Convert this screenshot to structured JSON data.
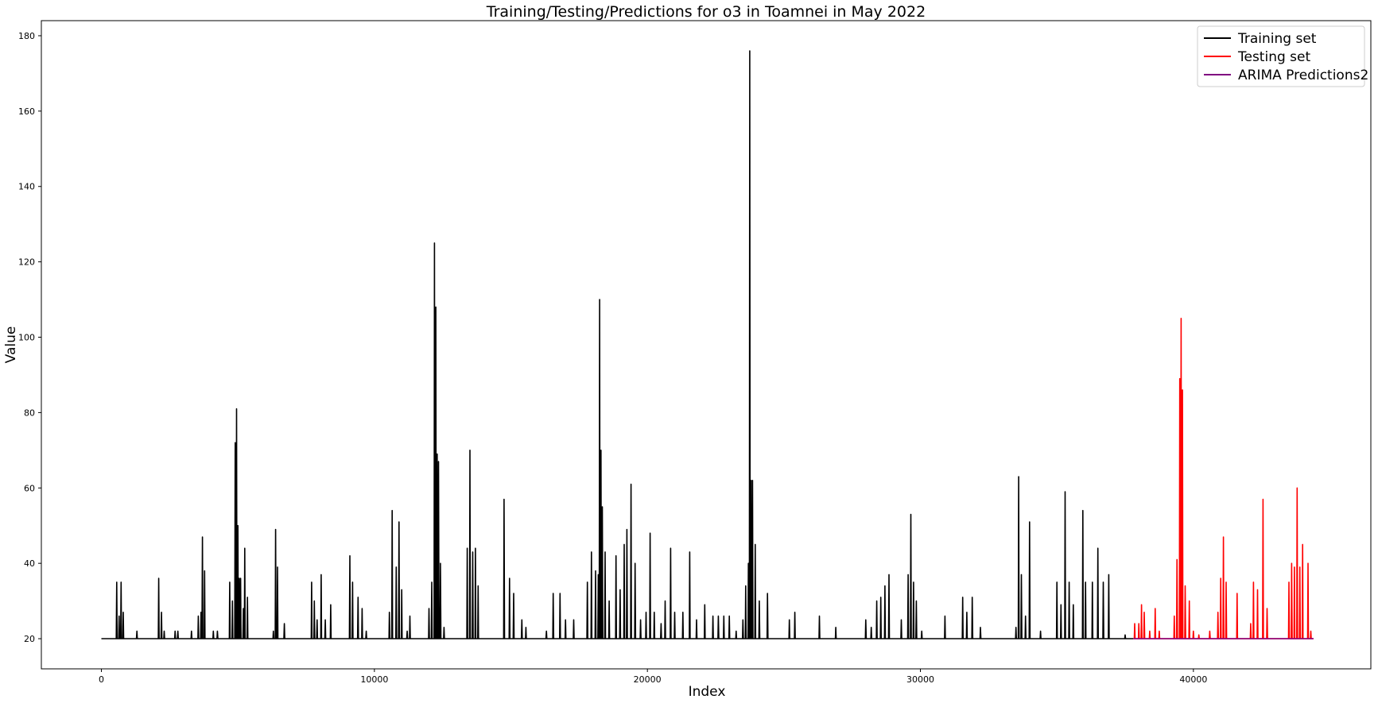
{
  "chart_data": {
    "type": "line",
    "title": "Training/Testing/Predictions for o3 in Toamnei in May 2022",
    "xlabel": "Index",
    "ylabel": "Value",
    "xlim": [
      -2200,
      46500
    ],
    "ylim": [
      12,
      184
    ],
    "xticks": [
      0,
      10000,
      20000,
      30000,
      40000
    ],
    "yticks": [
      20,
      40,
      60,
      80,
      100,
      120,
      140,
      160,
      180
    ],
    "legend_position": "top-right",
    "baseline": 20,
    "series": [
      {
        "name": "Training set",
        "color": "#000000",
        "range": [
          0,
          37800
        ],
        "spikes": [
          [
            560,
            35
          ],
          [
            650,
            26
          ],
          [
            720,
            35
          ],
          [
            800,
            27
          ],
          [
            1300,
            22
          ],
          [
            2100,
            36
          ],
          [
            2200,
            27
          ],
          [
            2300,
            22
          ],
          [
            2700,
            22
          ],
          [
            2800,
            22
          ],
          [
            3300,
            22
          ],
          [
            3550,
            26
          ],
          [
            3650,
            27
          ],
          [
            3700,
            47
          ],
          [
            3780,
            38
          ],
          [
            4100,
            22
          ],
          [
            4250,
            22
          ],
          [
            4700,
            35
          ],
          [
            4800,
            30
          ],
          [
            4900,
            72
          ],
          [
            4950,
            81
          ],
          [
            5000,
            50
          ],
          [
            5050,
            36
          ],
          [
            5100,
            36
          ],
          [
            5200,
            28
          ],
          [
            5250,
            44
          ],
          [
            5350,
            31
          ],
          [
            6300,
            22
          ],
          [
            6380,
            49
          ],
          [
            6450,
            39
          ],
          [
            6700,
            24
          ],
          [
            7700,
            35
          ],
          [
            7800,
            30
          ],
          [
            7900,
            25
          ],
          [
            8050,
            37
          ],
          [
            8200,
            25
          ],
          [
            8400,
            29
          ],
          [
            9100,
            42
          ],
          [
            9200,
            35
          ],
          [
            9400,
            31
          ],
          [
            9550,
            28
          ],
          [
            9700,
            22
          ],
          [
            10550,
            27
          ],
          [
            10650,
            54
          ],
          [
            10800,
            39
          ],
          [
            10900,
            51
          ],
          [
            11000,
            33
          ],
          [
            11200,
            22
          ],
          [
            11300,
            26
          ],
          [
            12000,
            28
          ],
          [
            12100,
            35
          ],
          [
            12200,
            125
          ],
          [
            12250,
            108
          ],
          [
            12300,
            69
          ],
          [
            12350,
            67
          ],
          [
            12420,
            40
          ],
          [
            12550,
            23
          ],
          [
            13400,
            44
          ],
          [
            13500,
            70
          ],
          [
            13600,
            43
          ],
          [
            13700,
            44
          ],
          [
            13800,
            34
          ],
          [
            14750,
            57
          ],
          [
            14950,
            36
          ],
          [
            15100,
            32
          ],
          [
            15400,
            25
          ],
          [
            15550,
            23
          ],
          [
            16300,
            22
          ],
          [
            16550,
            32
          ],
          [
            16800,
            32
          ],
          [
            17000,
            25
          ],
          [
            17300,
            25
          ],
          [
            17800,
            35
          ],
          [
            17950,
            43
          ],
          [
            18100,
            38
          ],
          [
            18200,
            37
          ],
          [
            18250,
            110
          ],
          [
            18300,
            70
          ],
          [
            18350,
            55
          ],
          [
            18450,
            43
          ],
          [
            18600,
            30
          ],
          [
            18850,
            42
          ],
          [
            19000,
            33
          ],
          [
            19150,
            45
          ],
          [
            19250,
            49
          ],
          [
            19400,
            61
          ],
          [
            19550,
            40
          ],
          [
            19750,
            25
          ],
          [
            19950,
            27
          ],
          [
            20100,
            48
          ],
          [
            20250,
            27
          ],
          [
            20500,
            24
          ],
          [
            20650,
            30
          ],
          [
            20850,
            44
          ],
          [
            21000,
            27
          ],
          [
            21300,
            27
          ],
          [
            21550,
            43
          ],
          [
            21800,
            25
          ],
          [
            22100,
            29
          ],
          [
            22400,
            26
          ],
          [
            22600,
            26
          ],
          [
            22800,
            26
          ],
          [
            23000,
            26
          ],
          [
            23250,
            22
          ],
          [
            23500,
            25
          ],
          [
            23600,
            34
          ],
          [
            23700,
            40
          ],
          [
            23750,
            176
          ],
          [
            23800,
            62
          ],
          [
            23850,
            62
          ],
          [
            23950,
            45
          ],
          [
            24100,
            30
          ],
          [
            24400,
            32
          ],
          [
            25200,
            25
          ],
          [
            25400,
            27
          ],
          [
            26300,
            26
          ],
          [
            26900,
            23
          ],
          [
            28000,
            25
          ],
          [
            28200,
            23
          ],
          [
            28400,
            30
          ],
          [
            28550,
            31
          ],
          [
            28700,
            34
          ],
          [
            28850,
            37
          ],
          [
            29300,
            25
          ],
          [
            29550,
            37
          ],
          [
            29650,
            53
          ],
          [
            29750,
            35
          ],
          [
            29850,
            30
          ],
          [
            30050,
            22
          ],
          [
            30900,
            26
          ],
          [
            31550,
            31
          ],
          [
            31700,
            27
          ],
          [
            31900,
            31
          ],
          [
            32200,
            23
          ],
          [
            33500,
            23
          ],
          [
            33600,
            63
          ],
          [
            33700,
            37
          ],
          [
            33850,
            26
          ],
          [
            34000,
            51
          ],
          [
            34400,
            22
          ],
          [
            35000,
            35
          ],
          [
            35150,
            29
          ],
          [
            35300,
            59
          ],
          [
            35450,
            35
          ],
          [
            35600,
            29
          ],
          [
            35950,
            54
          ],
          [
            36050,
            35
          ],
          [
            36300,
            35
          ],
          [
            36500,
            44
          ],
          [
            36700,
            35
          ],
          [
            36900,
            37
          ],
          [
            37500,
            21
          ]
        ]
      },
      {
        "name": "Testing set",
        "color": "#ff0000",
        "range": [
          37800,
          44400
        ],
        "spikes": [
          [
            37850,
            24
          ],
          [
            38000,
            24
          ],
          [
            38100,
            29
          ],
          [
            38200,
            27
          ],
          [
            38400,
            22
          ],
          [
            38600,
            28
          ],
          [
            38750,
            22
          ],
          [
            39300,
            26
          ],
          [
            39400,
            41
          ],
          [
            39500,
            89
          ],
          [
            39550,
            105
          ],
          [
            39600,
            86
          ],
          [
            39700,
            34
          ],
          [
            39850,
            30
          ],
          [
            40000,
            22
          ],
          [
            40200,
            21
          ],
          [
            40600,
            22
          ],
          [
            40900,
            27
          ],
          [
            41000,
            36
          ],
          [
            41100,
            47
          ],
          [
            41200,
            35
          ],
          [
            41600,
            32
          ],
          [
            42100,
            24
          ],
          [
            42200,
            35
          ],
          [
            42350,
            33
          ],
          [
            42550,
            57
          ],
          [
            42700,
            28
          ],
          [
            43500,
            35
          ],
          [
            43600,
            40
          ],
          [
            43700,
            39
          ],
          [
            43800,
            60
          ],
          [
            43900,
            39
          ],
          [
            44000,
            45
          ],
          [
            44200,
            40
          ],
          [
            44300,
            22
          ]
        ]
      },
      {
        "name": "ARIMA Predictions2",
        "color": "#800080",
        "range": [
          37800,
          44400
        ],
        "constant": 20
      }
    ]
  }
}
